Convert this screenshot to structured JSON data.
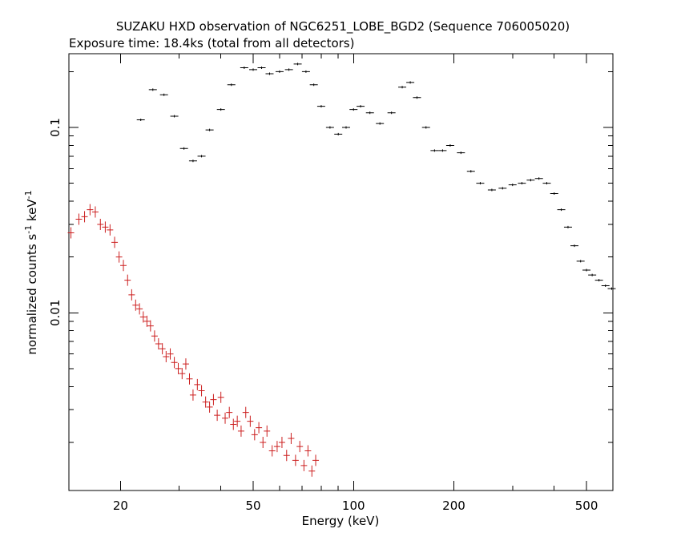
{
  "chart_data": {
    "type": "scatter",
    "title": "SUZAKU HXD observation of NGC6251_LOBE_BGD2 (Sequence 706005020)",
    "subtitle": "Exposure time: 18.4ks (total from all detectors)",
    "xlabel": "Energy (keV)",
    "ylabel_main": "normalized counts s",
    "ylabel_sup1": "-1",
    "ylabel_mid": " keV",
    "ylabel_sup2": "-1",
    "x_scale": "log",
    "y_scale": "log",
    "xlim": [
      14,
      600
    ],
    "ylim": [
      0.0011,
      0.25
    ],
    "x_ticks": [
      {
        "value": 20,
        "label": "20"
      },
      {
        "value": 50,
        "label": "50"
      },
      {
        "value": 100,
        "label": "100"
      },
      {
        "value": 200,
        "label": "200"
      },
      {
        "value": 500,
        "label": "500"
      }
    ],
    "y_ticks": [
      {
        "value": 0.1,
        "label": "0.1"
      },
      {
        "value": 0.01,
        "label": "0.01"
      }
    ],
    "grid": false,
    "series": [
      {
        "color": "#000000",
        "points": [
          {
            "x": 23,
            "y": 0.11
          },
          {
            "x": 25,
            "y": 0.16
          },
          {
            "x": 27,
            "y": 0.15
          },
          {
            "x": 29,
            "y": 0.115
          },
          {
            "x": 31,
            "y": 0.077
          },
          {
            "x": 33,
            "y": 0.066
          },
          {
            "x": 35,
            "y": 0.07
          },
          {
            "x": 37,
            "y": 0.097
          },
          {
            "x": 40,
            "y": 0.125
          },
          {
            "x": 43,
            "y": 0.17
          },
          {
            "x": 47,
            "y": 0.21
          },
          {
            "x": 50,
            "y": 0.205
          },
          {
            "x": 53,
            "y": 0.21
          },
          {
            "x": 56,
            "y": 0.195
          },
          {
            "x": 60,
            "y": 0.2
          },
          {
            "x": 64,
            "y": 0.205
          },
          {
            "x": 68,
            "y": 0.22
          },
          {
            "x": 72,
            "y": 0.2
          },
          {
            "x": 76,
            "y": 0.17
          },
          {
            "x": 80,
            "y": 0.13
          },
          {
            "x": 85,
            "y": 0.1
          },
          {
            "x": 90,
            "y": 0.092
          },
          {
            "x": 95,
            "y": 0.1
          },
          {
            "x": 100,
            "y": 0.125
          },
          {
            "x": 105,
            "y": 0.13
          },
          {
            "x": 112,
            "y": 0.12
          },
          {
            "x": 120,
            "y": 0.105
          },
          {
            "x": 130,
            "y": 0.12
          },
          {
            "x": 140,
            "y": 0.165
          },
          {
            "x": 148,
            "y": 0.175
          },
          {
            "x": 155,
            "y": 0.145
          },
          {
            "x": 165,
            "y": 0.1
          },
          {
            "x": 175,
            "y": 0.075
          },
          {
            "x": 185,
            "y": 0.075
          },
          {
            "x": 195,
            "y": 0.08
          },
          {
            "x": 210,
            "y": 0.073
          },
          {
            "x": 225,
            "y": 0.058
          },
          {
            "x": 240,
            "y": 0.05
          },
          {
            "x": 260,
            "y": 0.046
          },
          {
            "x": 280,
            "y": 0.047
          },
          {
            "x": 300,
            "y": 0.049
          },
          {
            "x": 320,
            "y": 0.05
          },
          {
            "x": 340,
            "y": 0.052
          },
          {
            "x": 360,
            "y": 0.053
          },
          {
            "x": 380,
            "y": 0.05
          },
          {
            "x": 400,
            "y": 0.044
          },
          {
            "x": 420,
            "y": 0.036
          },
          {
            "x": 440,
            "y": 0.029
          },
          {
            "x": 460,
            "y": 0.023
          },
          {
            "x": 480,
            "y": 0.019
          },
          {
            "x": 500,
            "y": 0.017
          },
          {
            "x": 520,
            "y": 0.016
          },
          {
            "x": 545,
            "y": 0.015
          },
          {
            "x": 570,
            "y": 0.014
          },
          {
            "x": 595,
            "y": 0.0135
          }
        ]
      },
      {
        "color": "#cc1f1f",
        "points": [
          {
            "x": 14.2,
            "y": 0.027
          },
          {
            "x": 15,
            "y": 0.032
          },
          {
            "x": 15.6,
            "y": 0.033
          },
          {
            "x": 16.2,
            "y": 0.036
          },
          {
            "x": 16.8,
            "y": 0.035
          },
          {
            "x": 17.4,
            "y": 0.03
          },
          {
            "x": 18,
            "y": 0.029
          },
          {
            "x": 18.6,
            "y": 0.028
          },
          {
            "x": 19.2,
            "y": 0.024
          },
          {
            "x": 19.8,
            "y": 0.02
          },
          {
            "x": 20.4,
            "y": 0.018
          },
          {
            "x": 21,
            "y": 0.015
          },
          {
            "x": 21.6,
            "y": 0.0125
          },
          {
            "x": 22.2,
            "y": 0.011
          },
          {
            "x": 22.8,
            "y": 0.0105
          },
          {
            "x": 23.4,
            "y": 0.0095
          },
          {
            "x": 24,
            "y": 0.009
          },
          {
            "x": 24.6,
            "y": 0.0085
          },
          {
            "x": 25.3,
            "y": 0.0075
          },
          {
            "x": 26,
            "y": 0.0068
          },
          {
            "x": 26.7,
            "y": 0.0064
          },
          {
            "x": 27.4,
            "y": 0.0058
          },
          {
            "x": 28.2,
            "y": 0.006
          },
          {
            "x": 29,
            "y": 0.0054
          },
          {
            "x": 29.8,
            "y": 0.005
          },
          {
            "x": 30.6,
            "y": 0.0047
          },
          {
            "x": 31.4,
            "y": 0.0053
          },
          {
            "x": 32.2,
            "y": 0.0044
          },
          {
            "x": 33,
            "y": 0.0036
          },
          {
            "x": 34,
            "y": 0.0041
          },
          {
            "x": 35,
            "y": 0.0038
          },
          {
            "x": 36,
            "y": 0.0033
          },
          {
            "x": 37,
            "y": 0.0031
          },
          {
            "x": 38,
            "y": 0.0034
          },
          {
            "x": 39,
            "y": 0.0028
          },
          {
            "x": 40,
            "y": 0.0035
          },
          {
            "x": 41.2,
            "y": 0.0027
          },
          {
            "x": 42.4,
            "y": 0.0029
          },
          {
            "x": 43.6,
            "y": 0.0025
          },
          {
            "x": 44.8,
            "y": 0.0026
          },
          {
            "x": 46,
            "y": 0.0023
          },
          {
            "x": 47.5,
            "y": 0.0029
          },
          {
            "x": 49,
            "y": 0.0026
          },
          {
            "x": 50.5,
            "y": 0.0022
          },
          {
            "x": 52,
            "y": 0.0024
          },
          {
            "x": 53.5,
            "y": 0.002
          },
          {
            "x": 55,
            "y": 0.0023
          },
          {
            "x": 57,
            "y": 0.0018
          },
          {
            "x": 59,
            "y": 0.0019
          },
          {
            "x": 61,
            "y": 0.002
          },
          {
            "x": 63,
            "y": 0.0017
          },
          {
            "x": 65,
            "y": 0.0021
          },
          {
            "x": 67,
            "y": 0.0016
          },
          {
            "x": 69,
            "y": 0.0019
          },
          {
            "x": 71,
            "y": 0.0015
          },
          {
            "x": 73,
            "y": 0.0018
          },
          {
            "x": 75,
            "y": 0.0014
          },
          {
            "x": 77,
            "y": 0.0016
          }
        ]
      }
    ]
  }
}
